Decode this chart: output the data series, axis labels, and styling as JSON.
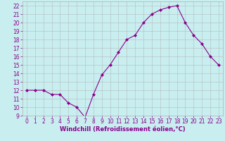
{
  "x": [
    0,
    1,
    2,
    3,
    4,
    5,
    6,
    7,
    8,
    9,
    10,
    11,
    12,
    13,
    14,
    15,
    16,
    17,
    18,
    19,
    20,
    21,
    22,
    23
  ],
  "y": [
    12,
    12,
    12,
    11.5,
    11.5,
    10.5,
    10,
    8.8,
    11.5,
    13.8,
    15,
    16.5,
    18,
    18.5,
    20,
    21,
    21.5,
    21.8,
    22,
    20,
    18.5,
    17.5,
    16,
    15
  ],
  "line_color": "#8b008b",
  "marker": "D",
  "marker_size": 2,
  "bg_color": "#c8eef0",
  "grid_color": "#b0b0b0",
  "xlabel": "Windchill (Refroidissement éolien,°C)",
  "xlabel_color": "#8b008b",
  "xlabel_fontsize": 6.0,
  "tick_color": "#8b008b",
  "tick_fontsize": 5.5,
  "ylim": [
    9,
    22.5
  ],
  "xlim": [
    -0.5,
    23.5
  ],
  "yticks": [
    9,
    10,
    11,
    12,
    13,
    14,
    15,
    16,
    17,
    18,
    19,
    20,
    21,
    22
  ],
  "xticks": [
    0,
    1,
    2,
    3,
    4,
    5,
    6,
    7,
    8,
    9,
    10,
    11,
    12,
    13,
    14,
    15,
    16,
    17,
    18,
    19,
    20,
    21,
    22,
    23
  ]
}
